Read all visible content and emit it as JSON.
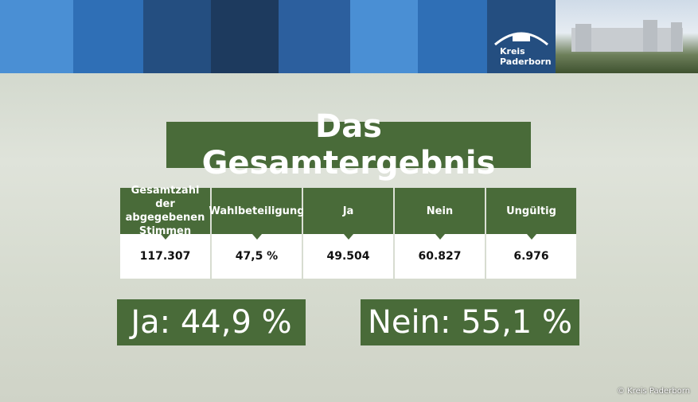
{
  "header": {
    "logo": "Kreis\nPaderborn"
  },
  "title": "Das Gesamtergebnis",
  "table": {
    "headers": [
      "Gesamtzahl der abgegebenen Stimmen",
      "Wahlbeteiligung",
      "Ja",
      "Nein",
      "Ungültig"
    ],
    "values": [
      "117.307",
      "47,5 %",
      "49.504",
      "60.827",
      "6.976"
    ]
  },
  "results": {
    "yes": "Ja: 44,9 %",
    "no": "Nein: 55,1 %"
  },
  "credit": "© Kreis Paderborn"
}
